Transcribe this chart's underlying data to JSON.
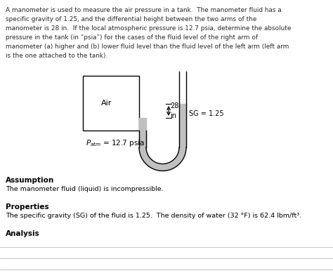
{
  "bg_color": "#ffffff",
  "text_color": "#2a2a2a",
  "paragraph": "A manometer is used to measure the air pressure in a tank.  The manometer fluid has a\nspecific gravity of 1.25, and the differential height between the two arms of the\nmanometer is 28 in.  If the local atmospheric pressure is 12.7 psia, determine the absolute\npressure in the tank (in “psia”) for the cases of the fluid level of the right arm of\nmanometer (a) higher and (b) lower fluid level than the fluid level of the left arm (left arm\nis the one attached to the tank).",
  "assumption_title": "Assumption",
  "assumption_body": "The manometer fluid (liquid) is incompressible.",
  "properties_title": "Properties",
  "properties_body": "The specific gravity (SG) of the fluid is 1.25.  The density of water (32 °F) is 62.4 lbm/ft³.",
  "analysis_title": "Analysis",
  "label_air": "Air",
  "label_28in": "28 in",
  "label_sg": "SG = 1.25",
  "label_patm": "$P_{atm}$ = 12.7 psia"
}
